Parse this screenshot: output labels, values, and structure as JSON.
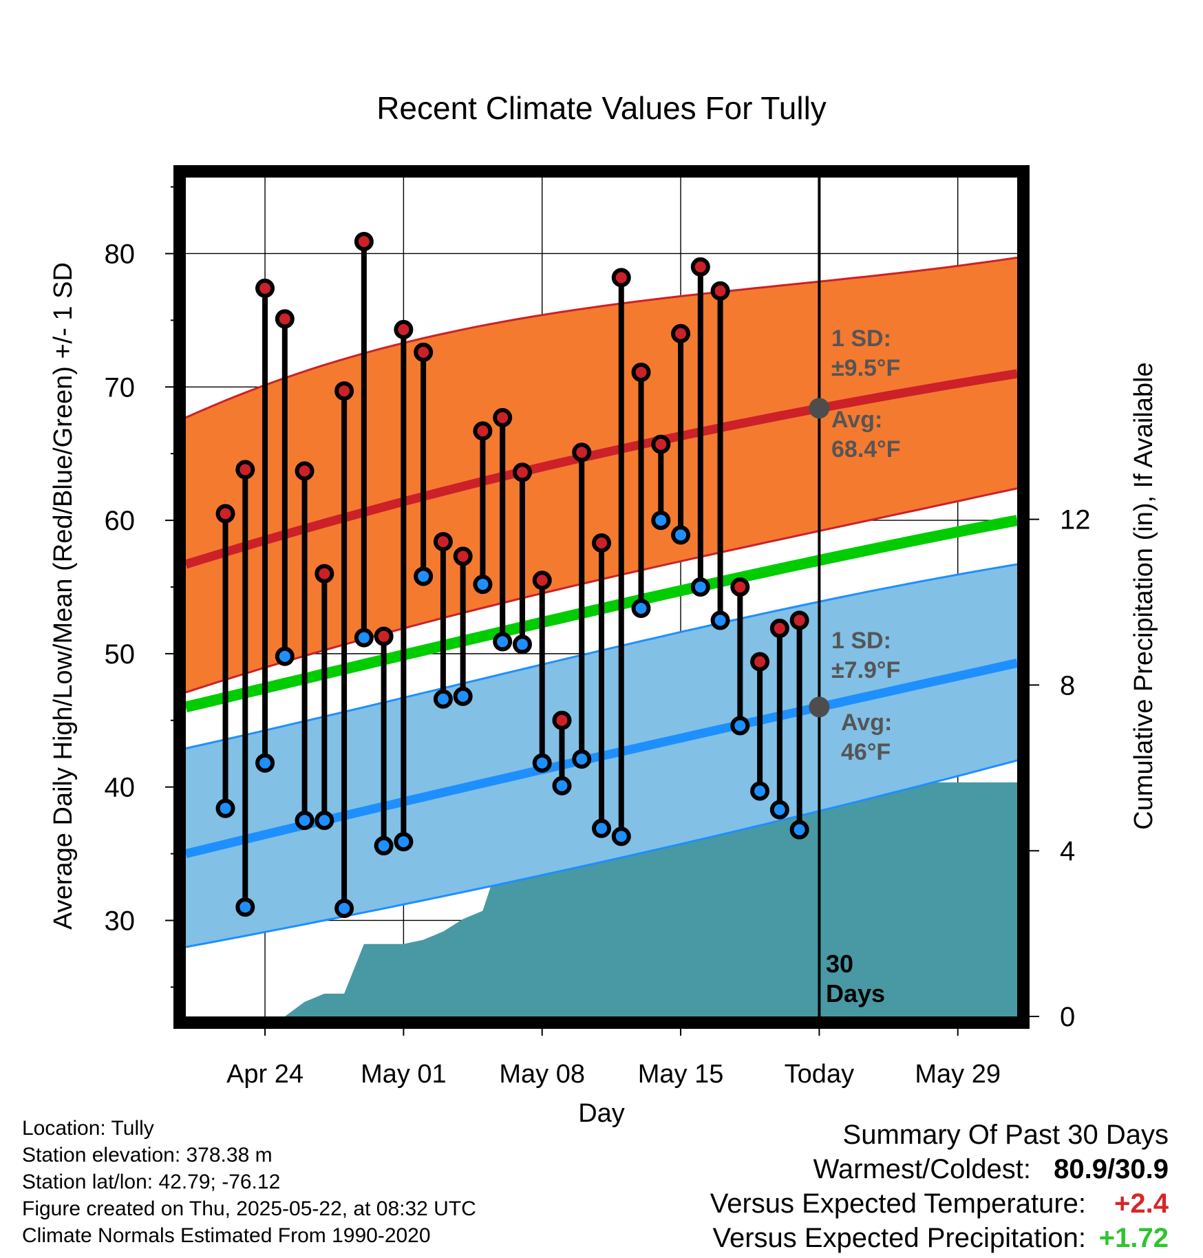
{
  "chart_data": {
    "type": "line",
    "title": "Recent Climate Values For Tully",
    "xlabel": "Day",
    "ylabel": "Average Daily High/Low/Mean (Red/Blue/Green) +/- 1 SD",
    "y2label": "Cumulative Precipitation (in), If Available",
    "ylim": [
      22.8,
      85.7
    ],
    "y2lim": [
      0,
      20.25
    ],
    "yticks": [
      30,
      40,
      50,
      60,
      70,
      80
    ],
    "y2ticks": [
      0,
      4,
      8,
      12
    ],
    "x_range": [
      "2025-04-20",
      "2025-06-01"
    ],
    "xticks": [
      {
        "date": "2025-04-24",
        "label": "Apr 24"
      },
      {
        "date": "2025-05-01",
        "label": "May 01"
      },
      {
        "date": "2025-05-08",
        "label": "May 08"
      },
      {
        "date": "2025-05-15",
        "label": "May 15"
      },
      {
        "date": "2025-05-22",
        "label": "Today"
      },
      {
        "date": "2025-05-29",
        "label": "May 29"
      }
    ],
    "grid": true,
    "today": "2025-05-22",
    "daily": [
      {
        "date": "2025-04-22",
        "high": 60.5,
        "low": 38.4
      },
      {
        "date": "2025-04-23",
        "high": 63.8,
        "low": 31.0
      },
      {
        "date": "2025-04-24",
        "high": 77.4,
        "low": 41.8
      },
      {
        "date": "2025-04-25",
        "high": 75.1,
        "low": 49.8
      },
      {
        "date": "2025-04-26",
        "high": 63.7,
        "low": 37.5
      },
      {
        "date": "2025-04-27",
        "high": 56.0,
        "low": 37.5
      },
      {
        "date": "2025-04-28",
        "high": 69.7,
        "low": 30.9
      },
      {
        "date": "2025-04-29",
        "high": 80.9,
        "low": 51.2
      },
      {
        "date": "2025-04-30",
        "high": 51.3,
        "low": 35.6
      },
      {
        "date": "2025-05-01",
        "high": 74.3,
        "low": 35.9
      },
      {
        "date": "2025-05-02",
        "high": 72.6,
        "low": 55.8
      },
      {
        "date": "2025-05-03",
        "high": 58.4,
        "low": 46.6
      },
      {
        "date": "2025-05-04",
        "high": 57.3,
        "low": 46.8
      },
      {
        "date": "2025-05-05",
        "high": 66.7,
        "low": 55.2
      },
      {
        "date": "2025-05-06",
        "high": 67.7,
        "low": 50.9
      },
      {
        "date": "2025-05-07",
        "high": 63.6,
        "low": 50.7
      },
      {
        "date": "2025-05-08",
        "high": 55.5,
        "low": 41.8
      },
      {
        "date": "2025-05-09",
        "high": 45.0,
        "low": 40.1
      },
      {
        "date": "2025-05-10",
        "high": 65.1,
        "low": 42.1
      },
      {
        "date": "2025-05-11",
        "high": 58.3,
        "low": 36.9
      },
      {
        "date": "2025-05-12",
        "high": 78.2,
        "low": 36.3
      },
      {
        "date": "2025-05-13",
        "high": 71.1,
        "low": 53.4
      },
      {
        "date": "2025-05-14",
        "high": 65.7,
        "low": 60.0
      },
      {
        "date": "2025-05-15",
        "high": 74.0,
        "low": 58.9
      },
      {
        "date": "2025-05-16",
        "high": 79.0,
        "low": 55.0
      },
      {
        "date": "2025-05-17",
        "high": 77.2,
        "low": 52.5
      },
      {
        "date": "2025-05-18",
        "high": 55.0,
        "low": 44.6
      },
      {
        "date": "2025-05-19",
        "high": 49.4,
        "low": 39.7
      },
      {
        "date": "2025-05-20",
        "high": 51.9,
        "low": 38.3
      },
      {
        "date": "2025-05-21",
        "high": 52.5,
        "low": 36.8
      }
    ],
    "normals": {
      "dates": [
        "2025-04-20",
        "2025-05-01",
        "2025-05-22",
        "2025-06-01"
      ],
      "mean_high": [
        56.7,
        61.4,
        68.4,
        71.0
      ],
      "high_sd_upper": [
        67.7,
        73.3,
        77.9,
        79.7
      ],
      "high_sd_lower": [
        47.1,
        51.9,
        59.2,
        62.4
      ],
      "mean_low": [
        35.0,
        38.9,
        46.0,
        49.3
      ],
      "low_sd_upper": [
        42.9,
        46.7,
        53.9,
        56.7
      ],
      "low_sd_lower": [
        28.0,
        31.2,
        38.2,
        42.0
      ],
      "mean": [
        46.0,
        49.9,
        57.0,
        60.0
      ]
    },
    "precipitation": {
      "dates": [
        "2025-04-20",
        "2025-04-24",
        "2025-04-25",
        "2025-04-26",
        "2025-04-27",
        "2025-04-28",
        "2025-04-29",
        "2025-04-30",
        "2025-05-01",
        "2025-05-02",
        "2025-05-03",
        "2025-05-04",
        "2025-05-05",
        "2025-05-06",
        "2025-05-07",
        "2025-05-08",
        "2025-05-09",
        "2025-05-10",
        "2025-05-11",
        "2025-05-12",
        "2025-05-13",
        "2025-05-14",
        "2025-05-15",
        "2025-05-16",
        "2025-05-17",
        "2025-05-18",
        "2025-05-19",
        "2025-05-20",
        "2025-05-21",
        "2025-06-01"
      ],
      "cumulative": [
        0,
        0,
        0.0,
        0.35,
        0.55,
        0.55,
        1.75,
        1.75,
        1.75,
        1.85,
        2.05,
        2.35,
        2.55,
        4.0,
        4.35,
        4.35,
        4.9,
        4.9,
        4.95,
        4.95,
        4.95,
        4.95,
        4.95,
        5.05,
        5.25,
        5.35,
        5.35,
        5.35,
        5.65,
        5.65
      ]
    },
    "annotations": {
      "high_sd": "1 SD:",
      "high_sd_value": "±9.5",
      "high_avg": "Avg:",
      "high_avg_value": "68.4",
      "low_sd": "1 SD:",
      "low_sd_value": "±7.9",
      "low_avg": "Avg:",
      "low_avg_value": "46",
      "degree_unit": "°F",
      "window_count": "30",
      "window_unit": "Days"
    },
    "colors": {
      "high_band": "#f47a30",
      "high_line": "#cc2128",
      "low_band": "#82c0e6",
      "low_line": "#1e8fff",
      "mean_line": "#00cc00",
      "precip": "#4899a3",
      "high_dot": "#cc2128",
      "low_dot": "#1e8fff",
      "avg_marker": "#4d4d4d",
      "annotation": "#555555"
    }
  },
  "footer": {
    "location": "Location: Tully",
    "elevation": "Station elevation: 378.38 m",
    "latlon": "Station lat/lon: 42.79; -76.12",
    "created": "Figure created on Thu, 2025-05-22, at 08:32 UTC",
    "normals": "Climate Normals Estimated From 1990-2020"
  },
  "summary": {
    "title": "Summary Of Past 30 Days",
    "warm_cold_label": "Warmest/Coldest:",
    "warm_cold_value": "80.9/30.9",
    "temp_label": "Versus Expected Temperature:",
    "temp_value": "+2.4",
    "temp_color": "#d62728",
    "precip_label": "Versus Expected Precipitation:",
    "precip_value": "+1.72",
    "precip_color": "#2ec52e"
  }
}
